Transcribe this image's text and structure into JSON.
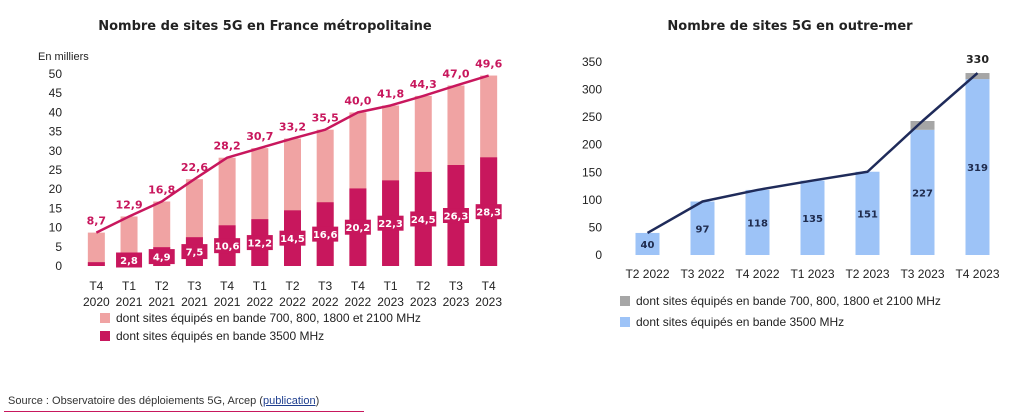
{
  "chart_data": [
    {
      "type": "bar",
      "title": "Nombre de sites 5G en France métropolitaine",
      "ylabel": "En milliers",
      "ylim": [
        0,
        50
      ],
      "yticks": [
        0,
        5,
        10,
        15,
        20,
        25,
        30,
        35,
        40,
        45,
        50
      ],
      "categories": [
        [
          "T4",
          "2020"
        ],
        [
          "T1",
          "2021"
        ],
        [
          "T2",
          "2021"
        ],
        [
          "T3",
          "2021"
        ],
        [
          "T4",
          "2021"
        ],
        [
          "T1",
          "2022"
        ],
        [
          "T2",
          "2022"
        ],
        [
          "T3",
          "2022"
        ],
        [
          "T4",
          "2022"
        ],
        [
          "T1",
          "2023"
        ],
        [
          "T2",
          "2023"
        ],
        [
          "T3",
          "2023"
        ],
        [
          "T4",
          "2023"
        ]
      ],
      "totals": [
        8.7,
        12.9,
        16.8,
        22.6,
        28.2,
        30.7,
        33.2,
        35.5,
        40.0,
        41.8,
        44.3,
        47.0,
        49.6
      ],
      "total_labels": [
        "8,7",
        "12,9",
        "16,8",
        "22,6",
        "28,2",
        "30,7",
        "33,2",
        "35,5",
        "40,0",
        "41,8",
        "44,3",
        "47,0",
        "49,6"
      ],
      "series": [
        {
          "name": "dont sites équipés en bande 700, 800, 1800 et 2100 MHz",
          "color": "#f0a3a3",
          "values": [
            7.7,
            10.1,
            11.9,
            15.1,
            17.6,
            18.5,
            18.7,
            18.9,
            19.8,
            19.5,
            19.8,
            20.7,
            21.3
          ]
        },
        {
          "name": "dont sites équipés en bande 3500 MHz",
          "color": "#c8175d",
          "values": [
            1.0,
            2.8,
            4.9,
            7.5,
            10.6,
            12.2,
            14.5,
            16.6,
            20.2,
            22.3,
            24.5,
            26.3,
            28.3
          ],
          "labels": [
            "",
            "2,8",
            "4,9",
            "7,5",
            "10,6",
            "12,2",
            "14,5",
            "16,6",
            "20,2",
            "22,3",
            "24,5",
            "26,3",
            "28,3"
          ]
        }
      ],
      "line_color": "#c8175d"
    },
    {
      "type": "bar",
      "title": "Nombre de sites 5G en outre-mer",
      "ylim": [
        0,
        350
      ],
      "yticks": [
        0,
        50,
        100,
        150,
        200,
        250,
        300,
        350
      ],
      "categories": [
        "T2 2022",
        "T3 2022",
        "T4 2022",
        "T1 2023",
        "T2 2023",
        "T3 2023",
        "T4 2023"
      ],
      "totals": [
        40,
        97,
        118,
        135,
        151,
        243,
        330
      ],
      "total_labels": [
        "",
        "",
        "",
        "",
        "",
        "",
        "330"
      ],
      "series": [
        {
          "name": "dont sites équipés en bande 700, 800, 1800 et 2100 MHz",
          "color": "#a6a6a6",
          "values": [
            0,
            0,
            0,
            0,
            0,
            16,
            11
          ]
        },
        {
          "name": "dont sites équipés en bande 3500 MHz",
          "color": "#9dc3f7",
          "values": [
            40,
            97,
            118,
            135,
            151,
            227,
            319
          ],
          "labels": [
            "40",
            "97",
            "118",
            "135",
            "151",
            "227",
            "319"
          ]
        }
      ],
      "line_color": "#1f2b5a"
    }
  ],
  "source": {
    "text": "Source : Observatoire des déploiements 5G, Arcep (",
    "link": "publication",
    "close": ")"
  }
}
